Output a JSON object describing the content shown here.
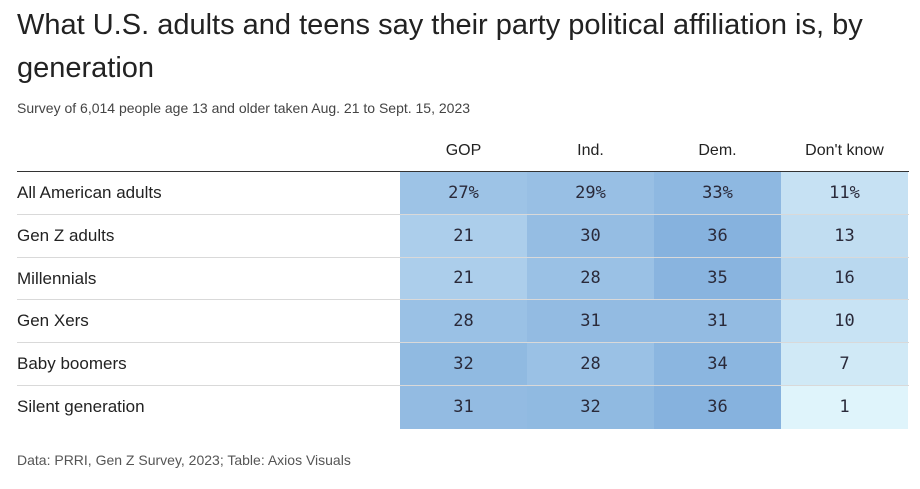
{
  "title": "What U.S. adults and teens say their party political affiliation is, by generation",
  "subtitle": "Survey of 6,014 people age 13 and older taken Aug. 21 to Sept. 15, 2023",
  "source": "Data: PRRI, Gen Z Survey, 2023; Table: Axios Visuals",
  "chart_data": {
    "type": "table",
    "title": "What U.S. adults and teens say their party political affiliation is, by generation",
    "subtitle": "Survey of 6,014 people age 13 and older taken Aug. 21 to Sept. 15, 2023",
    "columns": [
      "GOP",
      "Ind.",
      "Dem.",
      "Don't know"
    ],
    "rows": [
      {
        "label": "All American adults",
        "values": [
          27,
          29,
          33,
          11
        ],
        "display": [
          "27%",
          "29%",
          "33%",
          "11%"
        ]
      },
      {
        "label": "Gen Z adults",
        "values": [
          21,
          30,
          36,
          13
        ],
        "display": [
          "21",
          "30",
          "36",
          "13"
        ]
      },
      {
        "label": "Millennials",
        "values": [
          21,
          28,
          35,
          16
        ],
        "display": [
          "21",
          "28",
          "35",
          "16"
        ]
      },
      {
        "label": "Gen Xers",
        "values": [
          28,
          31,
          31,
          10
        ],
        "display": [
          "28",
          "31",
          "31",
          "10"
        ]
      },
      {
        "label": "Baby boomers",
        "values": [
          32,
          28,
          34,
          7
        ],
        "display": [
          "32",
          "28",
          "34",
          "7"
        ]
      },
      {
        "label": "Silent generation",
        "values": [
          31,
          32,
          36,
          1
        ],
        "display": [
          "31",
          "32",
          "36",
          "1"
        ]
      }
    ],
    "color_scale": {
      "low": "#e2f6fc",
      "high": "#86b2de",
      "min": 0,
      "max": 36
    }
  }
}
